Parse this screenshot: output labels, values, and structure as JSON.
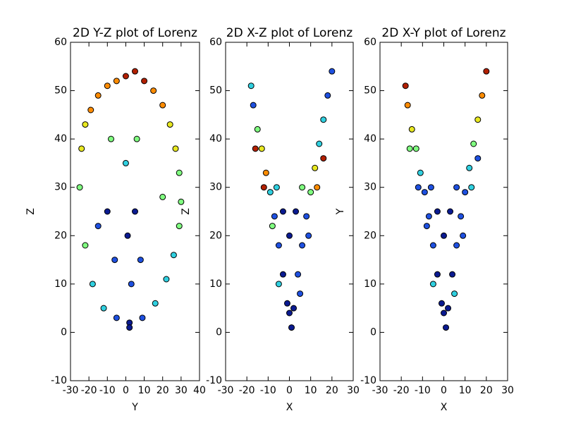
{
  "chart_data": [
    {
      "type": "scatter",
      "title": "2D Y-Z plot of Lorenz",
      "xlabel": "Y",
      "ylabel": "Z",
      "xlim": [
        -30,
        40
      ],
      "ylim": [
        -10,
        60
      ],
      "xticks": [
        -30,
        -20,
        -10,
        0,
        10,
        20,
        30,
        40
      ],
      "yticks": [
        -10,
        0,
        10,
        20,
        30,
        40,
        50,
        60
      ],
      "x": [
        -25,
        -24,
        -22,
        -19,
        -15,
        -10,
        -5,
        0,
        5,
        10,
        15,
        20,
        24,
        27,
        29,
        30,
        29,
        26,
        22,
        16,
        9,
        2,
        -5,
        -12,
        -18,
        -22,
        -10,
        -6,
        5,
        8,
        0,
        2,
        -8,
        6,
        -15,
        20,
        3,
        1
      ],
      "y": [
        30,
        38,
        43,
        46,
        49,
        51,
        52,
        53,
        54,
        52,
        50,
        47,
        43,
        38,
        33,
        27,
        22,
        16,
        11,
        6,
        3,
        2,
        3,
        5,
        10,
        18,
        25,
        15,
        25,
        15,
        35,
        1,
        40,
        40,
        22,
        28,
        10,
        20
      ],
      "colors": [
        "#80ff80",
        "#e8e820",
        "#e8e820",
        "#ff8c00",
        "#ff8c00",
        "#ff8c00",
        "#ff8c00",
        "#b22000",
        "#b22000",
        "#b22000",
        "#ff8c00",
        "#ff8c00",
        "#e8e820",
        "#e8e820",
        "#80ff80",
        "#80ff80",
        "#80ff80",
        "#30d0e0",
        "#30d0e0",
        "#30d0e0",
        "#1e50e0",
        "#0a1a90",
        "#1e50e0",
        "#30d0e0",
        "#30d0e0",
        "#80ff80",
        "#0a1a90",
        "#1e50e0",
        "#0a1a90",
        "#1e50e0",
        "#30d0e0",
        "#0a1a90",
        "#80ff80",
        "#80ff80",
        "#1e50e0",
        "#80ff80",
        "#1e50e0",
        "#0a1a90"
      ]
    },
    {
      "type": "scatter",
      "title": "2D X-Z plot of Lorenz",
      "xlabel": "X",
      "ylabel": "Z",
      "xlim": [
        -30,
        30
      ],
      "ylim": [
        -10,
        60
      ],
      "xticks": [
        -30,
        -20,
        -10,
        0,
        10,
        20,
        30
      ],
      "yticks": [
        -10,
        0,
        10,
        20,
        30,
        40,
        50,
        60
      ],
      "x": [
        -18,
        -17,
        -15,
        -13,
        -11,
        -9,
        -7,
        -5,
        -3,
        -1,
        0,
        1,
        2,
        4,
        6,
        8,
        10,
        12,
        14,
        16,
        18,
        20,
        -12,
        -8,
        -5,
        5,
        9,
        13,
        -16,
        16,
        -3,
        3,
        0,
        -6,
        6
      ],
      "y": [
        51,
        47,
        42,
        38,
        33,
        29,
        24,
        18,
        12,
        6,
        4,
        1,
        5,
        12,
        18,
        24,
        29,
        34,
        39,
        44,
        49,
        54,
        30,
        22,
        10,
        8,
        20,
        30,
        38,
        36,
        25,
        25,
        20,
        30,
        30
      ],
      "colors": [
        "#30d0e0",
        "#1e50e0",
        "#80ff80",
        "#e8e820",
        "#ff8c00",
        "#30d0e0",
        "#1e50e0",
        "#1e50e0",
        "#0a1a90",
        "#0a1a90",
        "#0a1a90",
        "#0a1a90",
        "#0a1a90",
        "#1e50e0",
        "#1e50e0",
        "#1e50e0",
        "#80ff80",
        "#e8e820",
        "#30d0e0",
        "#30d0e0",
        "#1e50e0",
        "#1e50e0",
        "#b22000",
        "#80ff80",
        "#30d0e0",
        "#1e50e0",
        "#1e50e0",
        "#ff8c00",
        "#b22000",
        "#b22000",
        "#0a1a90",
        "#0a1a90",
        "#0a1a90",
        "#30d0e0",
        "#80ff80"
      ]
    },
    {
      "type": "scatter",
      "title": "2D X-Y plot of Lorenz",
      "xlabel": "X",
      "ylabel": "Y",
      "xlim": [
        -30,
        30
      ],
      "ylim": [
        -10,
        60
      ],
      "xticks": [
        -30,
        -20,
        -10,
        0,
        10,
        20,
        30
      ],
      "yticks": [
        -10,
        0,
        10,
        20,
        30,
        40,
        50,
        60
      ],
      "x": [
        -18,
        -17,
        -15,
        -13,
        -11,
        -9,
        -7,
        -5,
        -3,
        -1,
        0,
        1,
        2,
        4,
        6,
        8,
        10,
        12,
        14,
        16,
        18,
        20,
        -12,
        -8,
        -5,
        5,
        9,
        13,
        -16,
        16,
        -3,
        3,
        0,
        -6,
        6
      ],
      "y": [
        51,
        47,
        42,
        38,
        33,
        29,
        24,
        18,
        12,
        6,
        4,
        1,
        5,
        12,
        18,
        24,
        29,
        34,
        39,
        44,
        49,
        54,
        30,
        22,
        10,
        8,
        20,
        30,
        38,
        36,
        25,
        25,
        20,
        30,
        30
      ],
      "colors": [
        "#b22000",
        "#ff8c00",
        "#e8e820",
        "#80ff80",
        "#30d0e0",
        "#1e50e0",
        "#1e50e0",
        "#1e50e0",
        "#0a1a90",
        "#0a1a90",
        "#0a1a90",
        "#0a1a90",
        "#0a1a90",
        "#0a1a90",
        "#1e50e0",
        "#1e50e0",
        "#1e50e0",
        "#30d0e0",
        "#80ff80",
        "#e8e820",
        "#ff8c00",
        "#b22000",
        "#1e50e0",
        "#1e50e0",
        "#30d0e0",
        "#30d0e0",
        "#1e50e0",
        "#30d0e0",
        "#80ff80",
        "#1e50e0",
        "#0a1a90",
        "#0a1a90",
        "#0a1a90",
        "#1e50e0",
        "#1e50e0"
      ]
    }
  ]
}
